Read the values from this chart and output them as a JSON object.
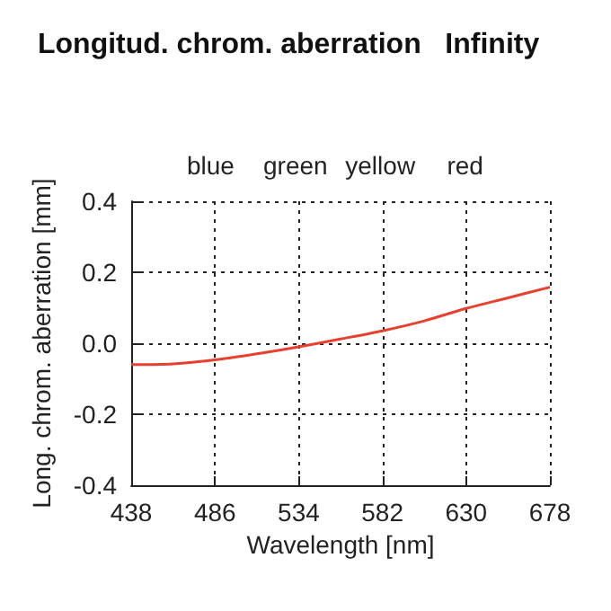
{
  "chart_data": {
    "type": "line",
    "title": "Longitud. chrom. aberration   Infinity",
    "xlabel": "Wavelength [nm]",
    "ylabel": "Long. chrom. aberration [mm]",
    "x": [
      438,
      462,
      486,
      510,
      534,
      558,
      582,
      606,
      630,
      654,
      678
    ],
    "series": [
      {
        "color": "#e8402e",
        "values": [
          -0.06,
          -0.058,
          -0.047,
          -0.03,
          -0.01,
          0.012,
          0.035,
          0.063,
          0.098,
          0.128,
          0.158
        ]
      }
    ],
    "xlim": [
      438,
      678
    ],
    "xticks": [
      438,
      486,
      534,
      582,
      630,
      678
    ],
    "ylim": [
      -0.4,
      0.4
    ],
    "yticks": [
      -0.4,
      -0.2,
      {
        "value": 0,
        "label": "0.0"
      },
      0.2,
      0.4
    ],
    "annotations": [
      "blue",
      "green",
      "yellow",
      "red"
    ],
    "grid": true,
    "marker": "none",
    "line_style": "solid"
  }
}
